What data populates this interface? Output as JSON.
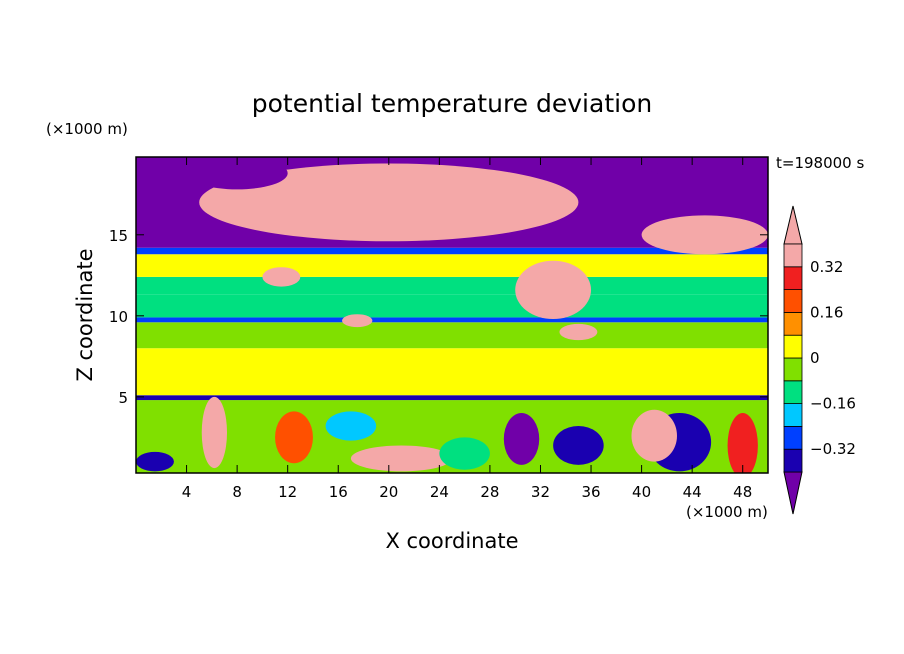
{
  "chart_data": {
    "type": "heatmap",
    "title": "potential temperature deviation",
    "xlabel": "X coordinate",
    "ylabel": "Z coordinate",
    "x_unit": "(×1000 m)",
    "y_unit": "(×1000 m)",
    "time_label": "t=198000 s",
    "xlim": [
      0,
      50
    ],
    "ylim": [
      0.3,
      19.8
    ],
    "x_ticks": [
      4,
      8,
      12,
      16,
      20,
      24,
      28,
      32,
      36,
      40,
      44,
      48
    ],
    "y_ticks": [
      5,
      10,
      15
    ],
    "grid": false,
    "colorbar": {
      "position": "right",
      "levels": [
        -0.4,
        -0.32,
        -0.24,
        -0.16,
        -0.08,
        0,
        0.08,
        0.16,
        0.24,
        0.32,
        0.4
      ],
      "tick_labels": [
        {
          "value": 0.32,
          "label": "0.32"
        },
        {
          "value": 0.16,
          "label": "0.16"
        },
        {
          "value": 0,
          "label": "0"
        },
        {
          "value": -0.16,
          "label": "−0.16"
        },
        {
          "value": -0.32,
          "label": "−0.32"
        }
      ],
      "colors": [
        "#7000a8",
        "#1a00b0",
        "#0040ff",
        "#00c8ff",
        "#00e080",
        "#80e000",
        "#ffff00",
        "#ff9000",
        "#ff5000",
        "#f02020",
        "#f4a8a8"
      ]
    },
    "bands": [
      {
        "y0": 0.3,
        "y1": 4.8,
        "value": -0.05
      },
      {
        "y0": 4.8,
        "y1": 5.1,
        "value": -0.36
      },
      {
        "y0": 5.1,
        "y1": 8.0,
        "value": 0.04
      },
      {
        "y0": 8.0,
        "y1": 9.6,
        "value": -0.04
      },
      {
        "y0": 9.6,
        "y1": 9.9,
        "value": -0.28
      },
      {
        "y0": 9.9,
        "y1": 11.3,
        "value": -0.1
      },
      {
        "y0": 11.3,
        "y1": 12.4,
        "value": -0.14
      },
      {
        "y0": 12.4,
        "y1": 13.8,
        "value": 0.04
      },
      {
        "y0": 13.8,
        "y1": 14.2,
        "value": -0.3
      },
      {
        "y0": 14.2,
        "y1": 19.8,
        "value": -0.45
      }
    ],
    "blobs": [
      {
        "x": 6.2,
        "z": 2.8,
        "rx": 1.0,
        "rz": 2.2,
        "value": 0.45
      },
      {
        "x": 43.0,
        "z": 2.2,
        "rx": 2.5,
        "rz": 1.8,
        "value": -0.35
      },
      {
        "x": 41.0,
        "z": 2.6,
        "rx": 1.8,
        "rz": 1.6,
        "value": 0.45
      },
      {
        "x": 21.0,
        "z": 1.2,
        "rx": 4.0,
        "rz": 0.8,
        "value": 0.34
      },
      {
        "x": 12.5,
        "z": 2.5,
        "rx": 1.5,
        "rz": 1.6,
        "value": 0.22
      },
      {
        "x": 30.5,
        "z": 2.4,
        "rx": 1.4,
        "rz": 1.6,
        "value": -0.42
      },
      {
        "x": 35.0,
        "z": 2.0,
        "rx": 2.0,
        "rz": 1.2,
        "value": -0.38
      },
      {
        "x": 48.0,
        "z": 2.0,
        "rx": 1.2,
        "rz": 2.0,
        "value": 0.28
      },
      {
        "x": 1.5,
        "z": 1.0,
        "rx": 1.5,
        "rz": 0.6,
        "value": -0.34
      },
      {
        "x": 17.0,
        "z": 3.2,
        "rx": 2.0,
        "rz": 0.9,
        "value": -0.22
      },
      {
        "x": 26.0,
        "z": 1.5,
        "rx": 2.0,
        "rz": 1.0,
        "value": -0.12
      },
      {
        "x": 33.0,
        "z": 11.6,
        "rx": 3.0,
        "rz": 1.8,
        "value": 0.45
      },
      {
        "x": 11.5,
        "z": 12.4,
        "rx": 1.5,
        "rz": 0.6,
        "value": 0.45
      },
      {
        "x": 17.5,
        "z": 9.7,
        "rx": 1.2,
        "rz": 0.4,
        "value": 0.45
      },
      {
        "x": 35.0,
        "z": 9.0,
        "rx": 1.5,
        "rz": 0.5,
        "value": 0.45
      },
      {
        "x": 36.0,
        "z": 17.6,
        "rx": 7.0,
        "rz": 1.8,
        "value": -0.45
      },
      {
        "x": 20.0,
        "z": 17.0,
        "rx": 15.0,
        "rz": 2.4,
        "value": 0.45
      },
      {
        "x": 45.0,
        "z": 15.0,
        "rx": 5.0,
        "rz": 1.2,
        "value": 0.45
      },
      {
        "x": 8.0,
        "z": 18.8,
        "rx": 4.0,
        "rz": 1.0,
        "value": -0.45
      }
    ]
  }
}
